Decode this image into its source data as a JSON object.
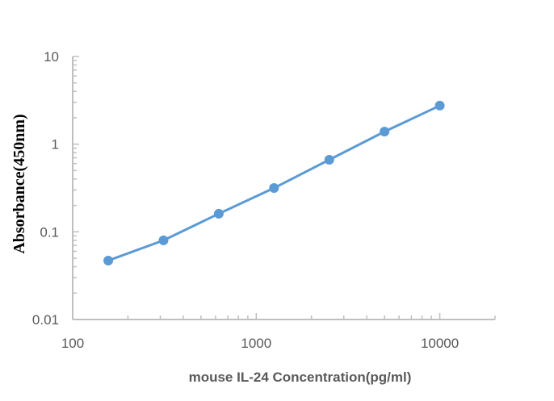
{
  "chart_data": {
    "type": "line",
    "title": "",
    "xlabel": "mouse IL-24 Concentration(pg/ml)",
    "ylabel": "Absorbance(450nm)",
    "x_scale": "log",
    "y_scale": "log",
    "xlim": [
      100,
      20000
    ],
    "ylim": [
      0.01,
      10
    ],
    "x_ticks": [
      "100",
      "1000",
      "10000"
    ],
    "y_ticks": [
      "10",
      "1",
      "0.1",
      "0.01"
    ],
    "grid": false,
    "series": [
      {
        "x": [
          156.25,
          312.5,
          625,
          1250,
          2500,
          5000,
          10000
        ],
        "y": [
          0.047,
          0.08,
          0.161,
          0.316,
          0.664,
          1.39,
          2.75
        ],
        "color": "#5b9bd5"
      }
    ]
  }
}
